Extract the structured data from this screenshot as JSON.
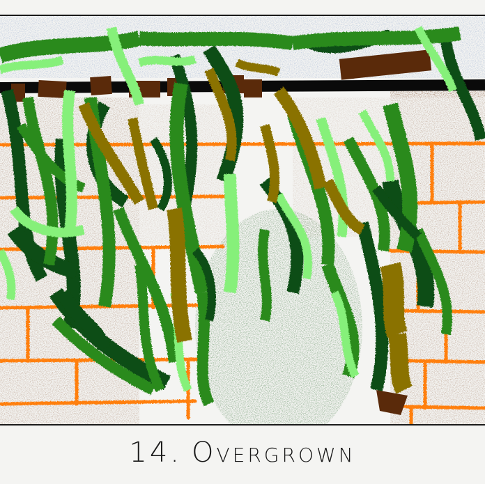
{
  "artwork": {
    "caption_number": "14.",
    "caption_title": "Overgrown",
    "colors": {
      "sky": "#b8c6dc",
      "paper": "#f4f4f2",
      "brick_mortar": "#ff7f0e",
      "brick_speckle": "#8a5a3a",
      "vine_dark": "#0f4d12",
      "vine_mid": "#2a8a1e",
      "vine_light": "#86f07a",
      "vine_olive": "#8a7200",
      "trellis_black": "#0a0a0a",
      "trellis_brown": "#5a2a0a",
      "archway_green": "#5a8a5a"
    },
    "icons": [
      "overgrown-vine-illustration"
    ]
  }
}
